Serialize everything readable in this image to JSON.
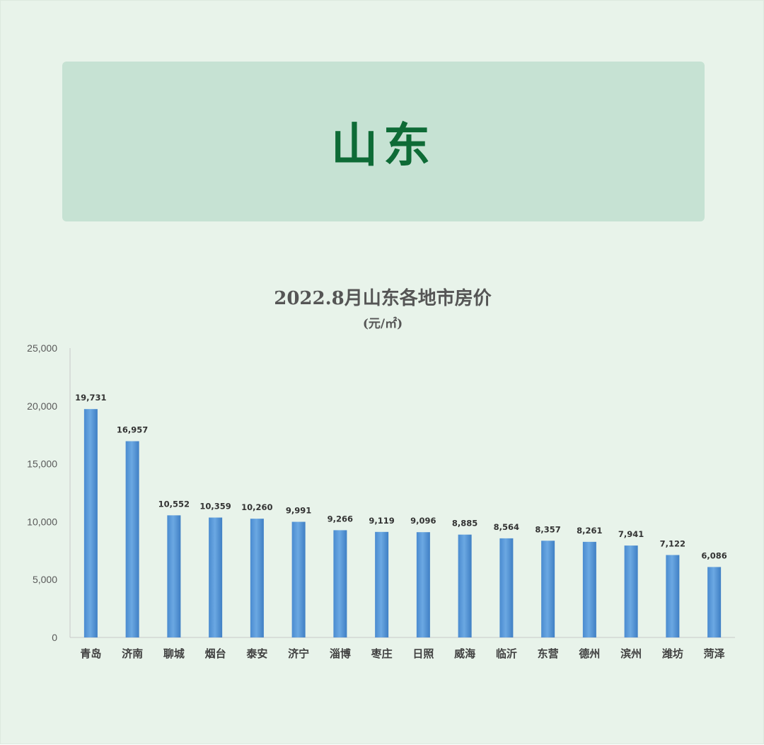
{
  "banner": {
    "title": "山东"
  },
  "chart_data": {
    "type": "bar",
    "title": "2022.8月山东各地市房价",
    "subtitle": "(元/㎡)",
    "categories": [
      "青岛",
      "济南",
      "聊城",
      "烟台",
      "泰安",
      "济宁",
      "淄博",
      "枣庄",
      "日照",
      "威海",
      "临沂",
      "东营",
      "德州",
      "滨州",
      "潍坊",
      "菏泽"
    ],
    "values": [
      19731,
      16957,
      10552,
      10359,
      10260,
      9991,
      9266,
      9119,
      9096,
      8885,
      8564,
      8357,
      8261,
      7941,
      7122,
      6086
    ],
    "data_labels": [
      "19,731",
      "16,957",
      "10,552",
      "10,359",
      "10,260",
      "9,991",
      "9,266",
      "9,119",
      "9,096",
      "8,885",
      "8,564",
      "8,357",
      "8,261",
      "7,941",
      "7,122",
      "6,086"
    ],
    "yticks": [
      "0",
      "5,000",
      "10,000",
      "15,000",
      "20,000",
      "25,000"
    ],
    "ylim": [
      0,
      25000
    ],
    "ytick_step": 5000,
    "grid": false,
    "legend": "none",
    "bar_color": "#5b9bd5"
  }
}
